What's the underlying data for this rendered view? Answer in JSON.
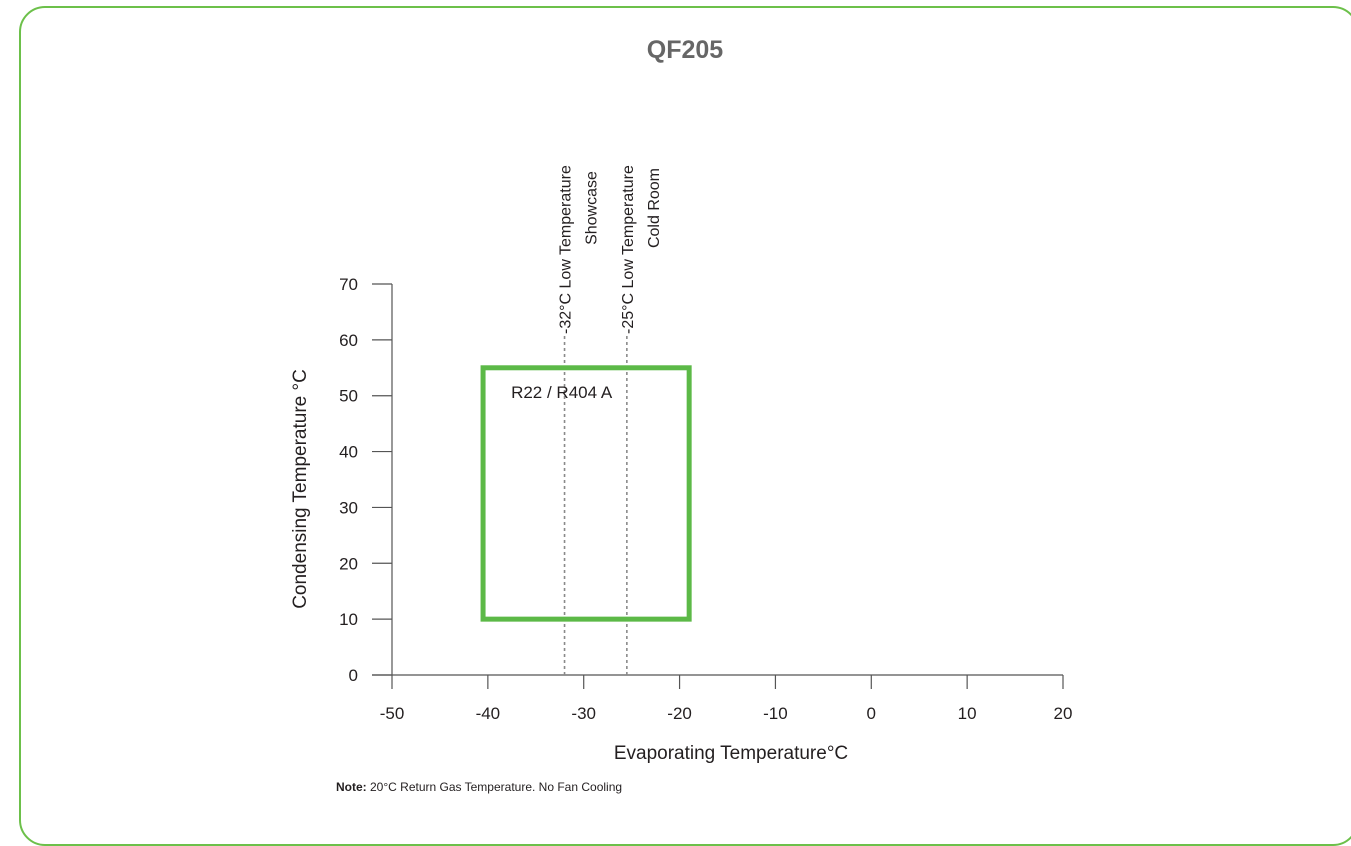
{
  "chart_data": {
    "type": "region",
    "title": "QF205",
    "xlabel": "Evaporating Temperature°C",
    "ylabel": "Condensing Temperature °C",
    "xlim": [
      -50,
      20
    ],
    "ylim": [
      0,
      70
    ],
    "xticks": [
      -50,
      -40,
      -30,
      -20,
      -10,
      0,
      10,
      20
    ],
    "yticks": [
      0,
      10,
      20,
      30,
      40,
      50,
      60,
      70
    ],
    "grid": false,
    "regions": [
      {
        "label": "R22 / R404 A",
        "color": "#5cb947",
        "x_range": [
          -40.5,
          -19
        ],
        "y_range": [
          10,
          55
        ]
      }
    ],
    "reference_lines": [
      {
        "x": -32,
        "lines": [
          "-32°C Low Temperature",
          "Showcase"
        ]
      },
      {
        "x": -25.5,
        "lines": [
          "-25°C Low Temperature",
          "Cold Room"
        ]
      }
    ],
    "note": {
      "bold": "Note:",
      "text": " 20°C Return Gas Temperature.  No Fan Cooling"
    }
  },
  "colors": {
    "frame": "#6cc04a",
    "region": "#5cb947",
    "axis": "#555555",
    "reference_line": "#8a8a8a"
  }
}
